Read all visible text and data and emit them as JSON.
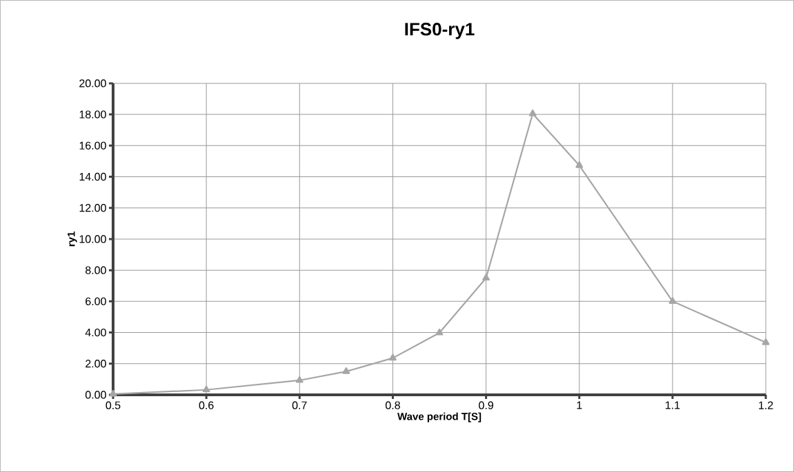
{
  "chart_data": {
    "type": "line",
    "title": "IFS0-ry1",
    "xlabel": "Wave period T[S]",
    "ylabel": "ry1",
    "x": [
      0.5,
      0.6,
      0.7,
      0.75,
      0.8,
      0.85,
      0.9,
      0.95,
      1.0,
      1.1,
      1.2
    ],
    "series": [
      {
        "color": "#a6a6a6",
        "values": [
          0.05,
          0.32,
          0.93,
          1.5,
          2.36,
          3.98,
          7.5,
          18.05,
          14.73,
          6.0,
          3.36
        ]
      }
    ],
    "xlim": [
      0.5,
      1.2
    ],
    "xticks": [
      0.5,
      0.6,
      0.7,
      0.8,
      0.9,
      1,
      1.1,
      1.2
    ],
    "ylim": [
      0,
      20
    ],
    "yticks": [
      {
        "value": 0,
        "label": "0.00"
      },
      {
        "value": 2,
        "label": "2.00"
      },
      {
        "value": 4,
        "label": "4.00"
      },
      {
        "value": 6,
        "label": "6.00"
      },
      {
        "value": 8,
        "label": "8.00"
      },
      {
        "value": 10,
        "label": "10.00"
      },
      {
        "value": 12,
        "label": "12.00"
      },
      {
        "value": 14,
        "label": "14.00"
      },
      {
        "value": 16,
        "label": "16.00"
      },
      {
        "value": 18,
        "label": "18.00"
      },
      {
        "value": 20,
        "label": "20.00"
      }
    ],
    "grid": true,
    "marker": "triangle",
    "line_style": "solid",
    "legend": false
  }
}
